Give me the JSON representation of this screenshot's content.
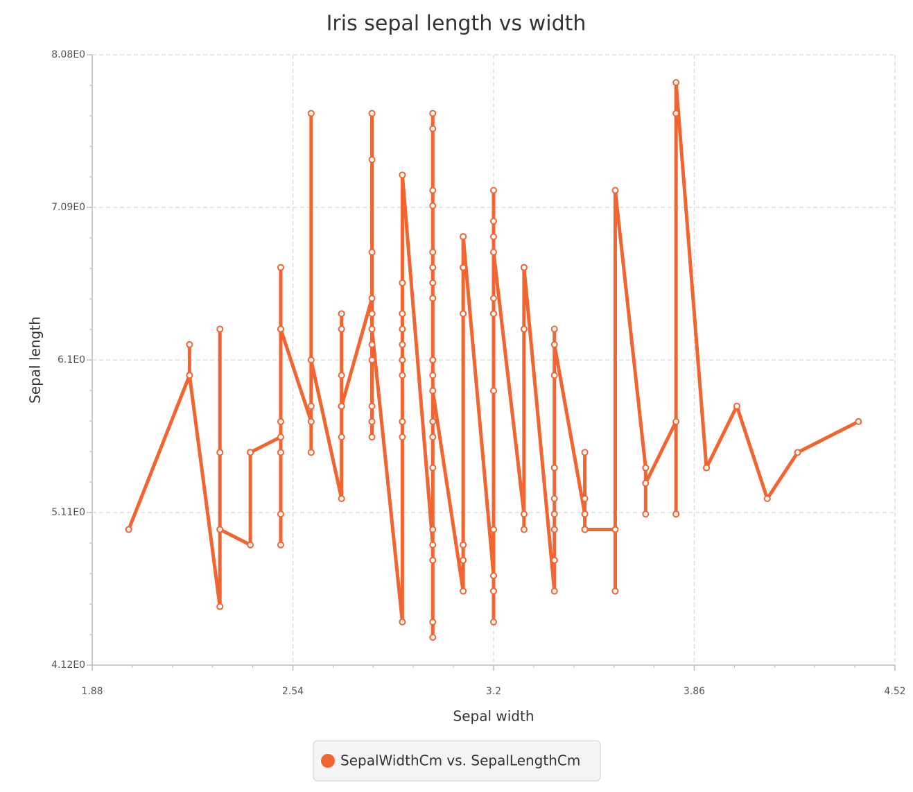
{
  "chart_data": {
    "type": "line",
    "title": "Iris sepal length vs width",
    "x_label": "Sepal width",
    "y_label": "Sepal length",
    "x": [
      2.0,
      2.2,
      2.2,
      2.2,
      2.3,
      2.3,
      2.3,
      2.3,
      2.4,
      2.4,
      2.4,
      2.5,
      2.5,
      2.5,
      2.5,
      2.5,
      2.5,
      2.5,
      2.5,
      2.6,
      2.6,
      2.6,
      2.6,
      2.6,
      2.7,
      2.7,
      2.7,
      2.7,
      2.7,
      2.7,
      2.7,
      2.7,
      2.7,
      2.8,
      2.8,
      2.8,
      2.8,
      2.8,
      2.8,
      2.8,
      2.8,
      2.8,
      2.8,
      2.8,
      2.8,
      2.8,
      2.8,
      2.9,
      2.9,
      2.9,
      2.9,
      2.9,
      2.9,
      2.9,
      2.9,
      2.9,
      2.9,
      3.0,
      3.0,
      3.0,
      3.0,
      3.0,
      3.0,
      3.0,
      3.0,
      3.0,
      3.0,
      3.0,
      3.0,
      3.0,
      3.0,
      3.0,
      3.0,
      3.0,
      3.0,
      3.0,
      3.0,
      3.0,
      3.0,
      3.0,
      3.0,
      3.0,
      3.0,
      3.1,
      3.1,
      3.1,
      3.1,
      3.1,
      3.1,
      3.1,
      3.1,
      3.1,
      3.1,
      3.1,
      3.1,
      3.2,
      3.2,
      3.2,
      3.2,
      3.2,
      3.2,
      3.2,
      3.2,
      3.2,
      3.2,
      3.2,
      3.2,
      3.2,
      3.3,
      3.3,
      3.3,
      3.3,
      3.3,
      3.3,
      3.4,
      3.4,
      3.4,
      3.4,
      3.4,
      3.4,
      3.4,
      3.4,
      3.4,
      3.4,
      3.4,
      3.4,
      3.5,
      3.5,
      3.5,
      3.5,
      3.5,
      3.5,
      3.6,
      3.6,
      3.6,
      3.7,
      3.7,
      3.7,
      3.8,
      3.8,
      3.8,
      3.8,
      3.8,
      3.8,
      3.9,
      3.9,
      4.0,
      4.1,
      4.2,
      4.4
    ],
    "series": [
      {
        "name": "SepalWidthCm vs. SepalLengthCm",
        "color": "#f26531",
        "values": [
          5.0,
          6.0,
          6.2,
          6.0,
          4.5,
          5.5,
          6.3,
          5.0,
          4.9,
          5.5,
          5.5,
          5.6,
          6.3,
          5.5,
          5.1,
          4.9,
          6.7,
          5.7,
          6.3,
          5.7,
          5.5,
          5.8,
          7.7,
          6.1,
          5.2,
          5.8,
          5.8,
          6.0,
          5.6,
          5.8,
          6.4,
          6.3,
          5.8,
          6.5,
          5.7,
          6.1,
          6.1,
          6.8,
          5.7,
          5.8,
          5.6,
          7.7,
          6.2,
          6.4,
          7.4,
          6.4,
          6.3,
          4.4,
          6.6,
          6.1,
          5.6,
          6.4,
          6.0,
          5.7,
          6.2,
          6.3,
          7.3,
          4.9,
          4.8,
          4.3,
          5.0,
          4.4,
          4.8,
          5.9,
          5.6,
          6.6,
          6.7,
          5.4,
          5.6,
          6.1,
          5.7,
          7.1,
          6.5,
          7.6,
          6.8,
          6.5,
          6.1,
          7.2,
          7.7,
          6.0,
          6.7,
          6.5,
          5.9,
          4.6,
          4.9,
          4.8,
          4.9,
          4.9,
          6.9,
          6.7,
          6.7,
          6.4,
          6.9,
          6.7,
          6.9,
          4.7,
          4.7,
          5.0,
          4.4,
          4.6,
          7.0,
          6.4,
          5.9,
          6.5,
          6.4,
          6.9,
          7.2,
          6.8,
          5.1,
          5.0,
          6.3,
          6.3,
          6.7,
          6.7,
          4.6,
          5.0,
          4.8,
          5.4,
          4.8,
          5.0,
          5.2,
          5.4,
          5.1,
          6.0,
          6.3,
          6.2,
          5.1,
          5.1,
          5.2,
          5.5,
          5.0,
          5.0,
          5.0,
          4.6,
          7.2,
          5.4,
          5.1,
          5.3,
          5.7,
          5.1,
          5.1,
          5.1,
          7.7,
          7.9,
          5.4,
          5.4,
          5.8,
          5.2,
          5.5,
          5.7
        ]
      }
    ],
    "xlim": [
      1.88,
      4.52
    ],
    "xticks": [
      1.88,
      2.54,
      3.2,
      3.86,
      4.52
    ],
    "ylim": [
      4.12,
      8.08
    ],
    "yticks": [
      {
        "value": 4.12,
        "label": "4.12E0"
      },
      {
        "value": 5.11,
        "label": "5.11E0"
      },
      {
        "value": 6.1,
        "label": "6.1E0"
      },
      {
        "value": 7.09,
        "label": "7.09E0"
      },
      {
        "value": 8.08,
        "label": "8.08E0"
      }
    ],
    "grid": true,
    "legend": "bottom"
  }
}
